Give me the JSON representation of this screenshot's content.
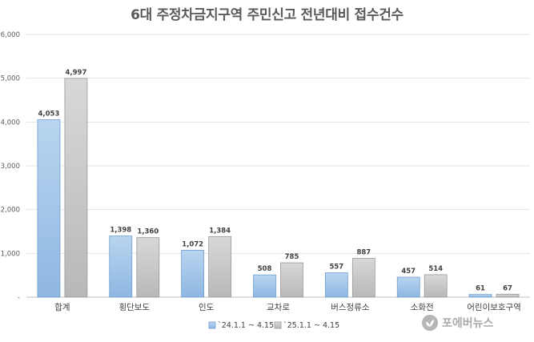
{
  "chart_data": {
    "type": "bar",
    "title": "6대 주정차금지구역 주민신고 전년대비 접수건수",
    "categories": [
      "합계",
      "횡단보도",
      "인도",
      "교차로",
      "버스정류소",
      "소화전",
      "어린이보호구역"
    ],
    "series": [
      {
        "name": "`24.1.1 ~ 4.15",
        "values": [
          4053,
          1398,
          1072,
          508,
          557,
          457,
          61
        ],
        "color": "#9dc3e6"
      },
      {
        "name": "`25.1.1 ~ 4.15",
        "values": [
          4997,
          1360,
          1384,
          785,
          887,
          514,
          67
        ],
        "color": "#c9c9c9"
      }
    ],
    "data_labels": [
      [
        "4,053",
        "1,398",
        "1,072",
        "508",
        "557",
        "457",
        "61"
      ],
      [
        "4,997",
        "1,360",
        "1,384",
        "785",
        "887",
        "514",
        "67"
      ]
    ],
    "ylim": [
      0,
      6000
    ],
    "yticks": [
      0,
      1000,
      2000,
      3000,
      4000,
      5000,
      6000
    ],
    "ytick_labels": [
      "-",
      "1,000",
      "2,000",
      "3,000",
      "4,000",
      "5,000",
      "6,000"
    ],
    "xlabel": "",
    "ylabel": "",
    "grid": true,
    "legend_position": "bottom"
  },
  "watermark": {
    "text": "포에버뉴스",
    "logo_icon": "plant-leaf-icon"
  }
}
